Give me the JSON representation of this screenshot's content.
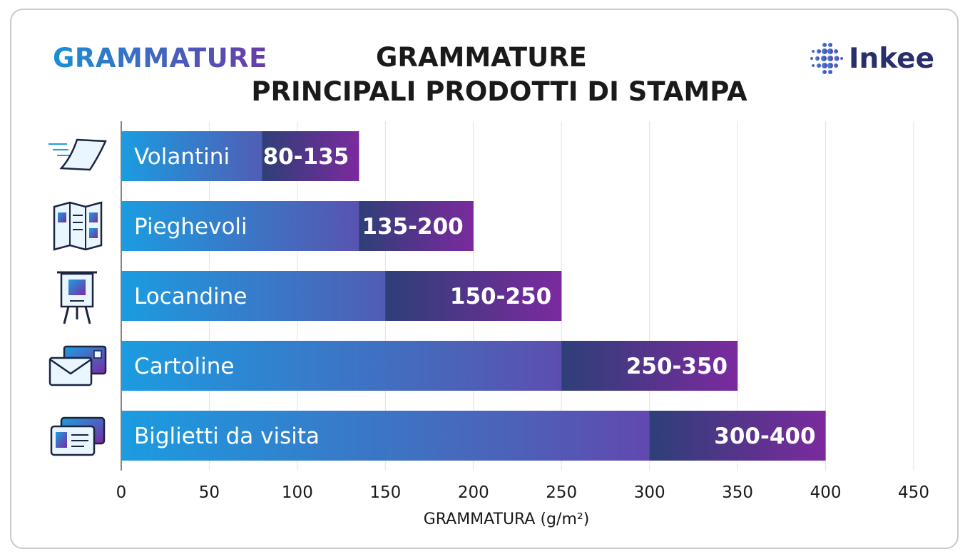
{
  "header": {
    "brand_left": "GRAMMATURE",
    "title_line1": "GRAMMATURE",
    "title_line2": "PRINCIPALI PRODOTTI DI STAMPA",
    "logo_text": "Inkee"
  },
  "chart_data": {
    "type": "bar",
    "orientation": "horizontal",
    "title": "GRAMMATURE PRINCIPALI PRODOTTI DI STAMPA",
    "xlabel": "GRAMMATURA (g/m²)",
    "xlim": [
      0,
      450
    ],
    "xticks": [
      0,
      50,
      100,
      150,
      200,
      250,
      300,
      350,
      400,
      450
    ],
    "grid": true,
    "categories": [
      "Volantini",
      "Pieghevoli",
      "Locandine",
      "Cartoline",
      "Biglietti da visita"
    ],
    "ranges": [
      [
        80,
        135
      ],
      [
        135,
        200
      ],
      [
        150,
        250
      ],
      [
        250,
        350
      ],
      [
        300,
        400
      ]
    ],
    "range_labels": [
      "80-135",
      "135-200",
      "150-250",
      "250-350",
      "300-400"
    ],
    "icons": [
      "flyer-icon",
      "brochure-icon",
      "poster-easel-icon",
      "postcard-envelope-icon",
      "business-card-icon"
    ],
    "colors": {
      "bar_start": "#1b9ce0",
      "bar_end": "#7a2aa3",
      "range_start": "#2e3f78",
      "range_end": "#7b2a9e"
    }
  }
}
